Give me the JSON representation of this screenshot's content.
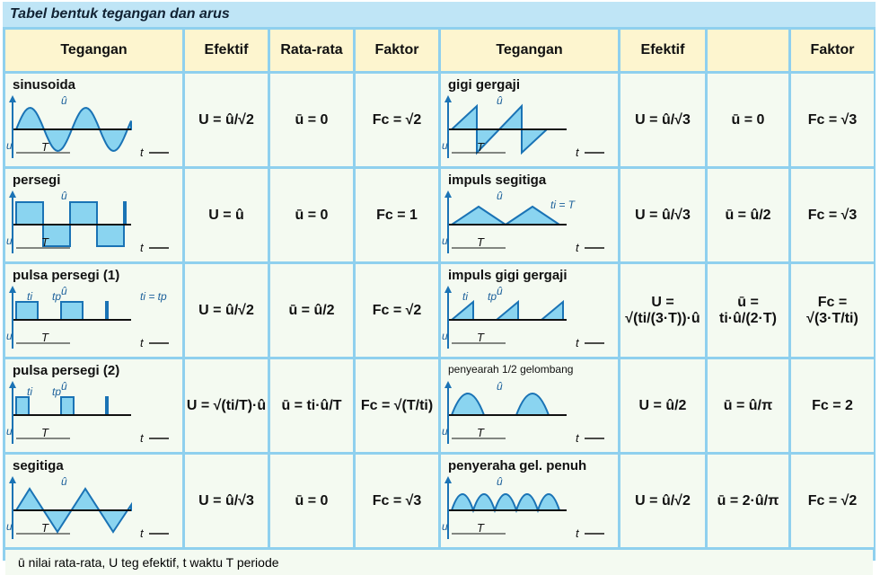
{
  "title": "Tabel bentuk tegangan dan arus",
  "header_left": [
    "Tegangan",
    "Efektif",
    "Rata-rata",
    "Faktor"
  ],
  "header_right": [
    "Tegangan",
    "Efektif",
    "Faktor"
  ],
  "rows": [
    {
      "left": {
        "name": "sinusoida",
        "labels": [
          "û",
          "T",
          "t",
          "u"
        ],
        "effective": "U = û/√2",
        "average": "ū = 0",
        "factor": "Fc = √2"
      },
      "right": {
        "name": "gigi gergaji",
        "labels": [
          "û",
          "T",
          "t",
          "u"
        ],
        "effective": "U = û/√3",
        "average": "ū = 0",
        "factor": "Fc = √3"
      }
    },
    {
      "left": {
        "name": "persegi",
        "labels": [
          "û",
          "T",
          "t",
          "u"
        ],
        "effective": "U = û",
        "average": "ū = 0",
        "factor": "Fc = 1"
      },
      "right": {
        "name": "impuls segitiga",
        "labels": [
          "û",
          "T",
          "t",
          "u",
          "ti = T"
        ],
        "effective": "U = û/√3",
        "average": "ū = û/2",
        "factor": "Fc = √3"
      }
    },
    {
      "left": {
        "name": "pulsa persegi (1)",
        "labels": [
          "û",
          "T",
          "t",
          "u",
          "ti",
          "tp",
          "ti = tp"
        ],
        "effective": "U = û/√2",
        "average": "ū = û/2",
        "factor": "Fc = √2"
      },
      "right": {
        "name": "impuls gigi gergaji",
        "labels": [
          "û",
          "T",
          "t",
          "u",
          "ti",
          "tp"
        ],
        "effective": "U = √(ti/(3·T))·û",
        "average": "ū = ti·û/(2·T)",
        "factor": "Fc = √(3·T/ti)"
      }
    },
    {
      "left": {
        "name": "pulsa persegi (2)",
        "labels": [
          "û",
          "T",
          "t",
          "u",
          "ti",
          "tp"
        ],
        "effective": "U = √(ti/T)·û",
        "average": "ū = ti·û/T",
        "factor": "Fc = √(T/ti)"
      },
      "right": {
        "name": "penyearah 1/2 gelombang",
        "labels": [
          "û",
          "T",
          "t",
          "u"
        ],
        "effective": "U = û/2",
        "average": "ū = û/π",
        "factor": "Fc = 2"
      }
    },
    {
      "left": {
        "name": "segitiga",
        "labels": [
          "û",
          "T",
          "t",
          "u"
        ],
        "effective": "U = û/√3",
        "average": "ū = 0",
        "factor": "Fc = √3"
      },
      "right": {
        "name": "penyeraha gel. penuh",
        "labels": [
          "û",
          "T",
          "t",
          "u"
        ],
        "effective": "U = û/√2",
        "average": "ū = 2·û/π",
        "factor": "Fc = √2"
      }
    }
  ],
  "footer": "ū  nilai rata-rata,  U teg efektif,  t  waktu    T periode"
}
